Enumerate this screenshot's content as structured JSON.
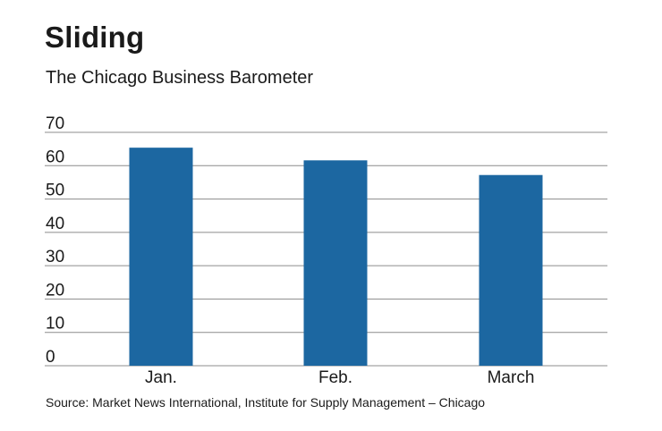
{
  "chart_data": {
    "type": "bar",
    "title": "Sliding",
    "subtitle": "The Chicago Business Barometer",
    "categories": [
      "Jan.",
      "Feb.",
      "March"
    ],
    "values": [
      65.4,
      61.6,
      57.2
    ],
    "ylim": [
      0,
      70
    ],
    "yticks": [
      0,
      10,
      20,
      30,
      40,
      50,
      60,
      70
    ],
    "xlabel": "",
    "ylabel": "",
    "grid": true,
    "bar_color": "#1c67a1",
    "grid_color": "#8c8c8c",
    "source": "Source: Market News International, Institute for Supply Management – Chicago"
  }
}
